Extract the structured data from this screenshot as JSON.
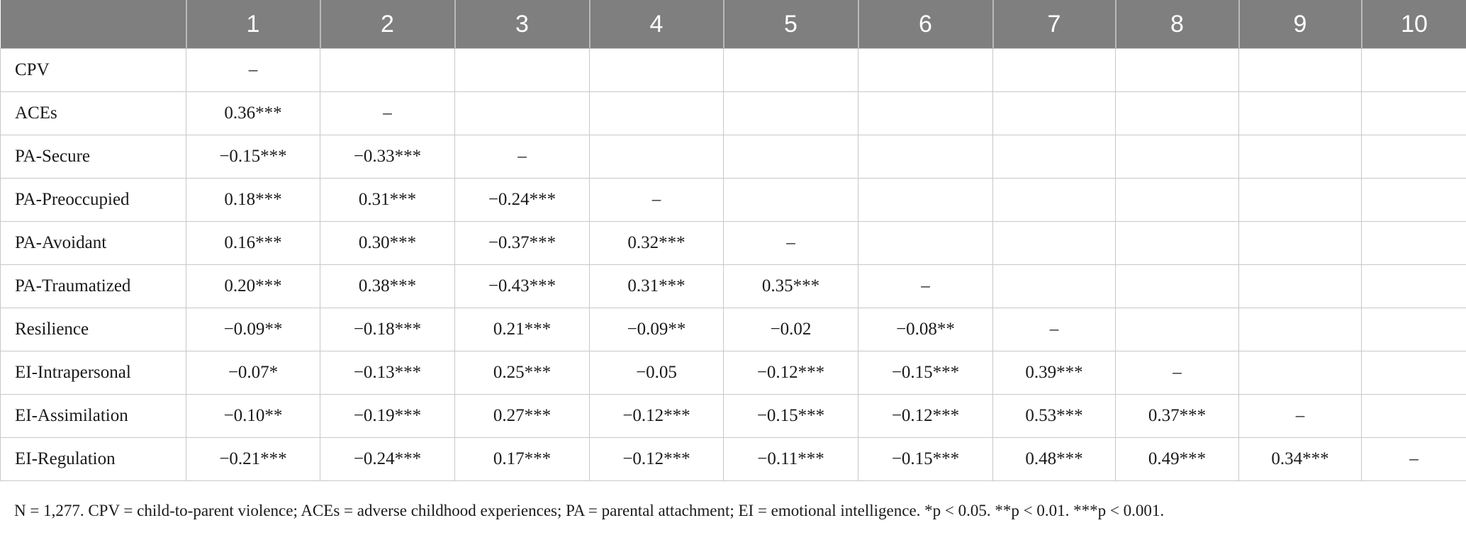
{
  "table": {
    "headers": [
      "",
      "1",
      "2",
      "3",
      "4",
      "5",
      "6",
      "7",
      "8",
      "9",
      "10"
    ],
    "rows": [
      {
        "label": "CPV",
        "cells": [
          "–",
          "",
          "",
          "",
          "",
          "",
          "",
          "",
          "",
          ""
        ]
      },
      {
        "label": "ACEs",
        "cells": [
          "0.36***",
          "–",
          "",
          "",
          "",
          "",
          "",
          "",
          "",
          ""
        ]
      },
      {
        "label": "PA-Secure",
        "cells": [
          "−0.15***",
          "−0.33***",
          "–",
          "",
          "",
          "",
          "",
          "",
          "",
          ""
        ]
      },
      {
        "label": "PA-Preoccupied",
        "cells": [
          "0.18***",
          "0.31***",
          "−0.24***",
          "–",
          "",
          "",
          "",
          "",
          "",
          ""
        ]
      },
      {
        "label": "PA-Avoidant",
        "cells": [
          "0.16***",
          "0.30***",
          "−0.37***",
          "0.32***",
          "–",
          "",
          "",
          "",
          "",
          ""
        ]
      },
      {
        "label": "PA-Traumatized",
        "cells": [
          "0.20***",
          "0.38***",
          "−0.43***",
          "0.31***",
          "0.35***",
          "–",
          "",
          "",
          "",
          ""
        ]
      },
      {
        "label": "Resilience",
        "cells": [
          "−0.09**",
          "−0.18***",
          "0.21***",
          "−0.09**",
          "−0.02",
          "−0.08**",
          "–",
          "",
          "",
          ""
        ]
      },
      {
        "label": "EI-Intrapersonal",
        "cells": [
          "−0.07*",
          "−0.13***",
          "0.25***",
          "−0.05",
          "−0.12***",
          "−0.15***",
          "0.39***",
          "–",
          "",
          ""
        ]
      },
      {
        "label": "EI-Assimilation",
        "cells": [
          "−0.10**",
          "−0.19***",
          "0.27***",
          "−0.12***",
          "−0.15***",
          "−0.12***",
          "0.53***",
          "0.37***",
          "–",
          ""
        ]
      },
      {
        "label": "EI-Regulation",
        "cells": [
          "−0.21***",
          "−0.24***",
          "0.17***",
          "−0.12***",
          "−0.11***",
          "−0.15***",
          "0.48***",
          "0.49***",
          "0.34***",
          "–"
        ]
      }
    ]
  },
  "note": "N = 1,277. CPV = child-to-parent violence; ACEs = adverse childhood experiences; PA = parental attachment; EI = emotional intelligence. *p < 0.05. **p < 0.01. ***p < 0.001."
}
